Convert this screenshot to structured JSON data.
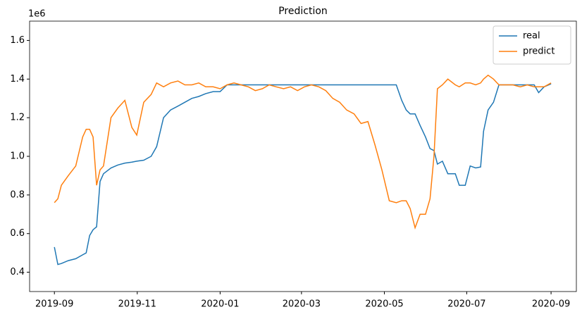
{
  "chart_data": {
    "type": "line",
    "title": "Prediction",
    "y_offset_label": "1e6",
    "x": [
      2019.666,
      2019.673,
      2019.68,
      2019.694,
      2019.709,
      2019.723,
      2019.73,
      2019.737,
      2019.744,
      2019.751,
      2019.758,
      2019.765,
      2019.78,
      2019.794,
      2019.808,
      2019.822,
      2019.832,
      2019.846,
      2019.861,
      2019.872,
      2019.886,
      2019.9,
      2019.915,
      2019.929,
      2019.943,
      2019.957,
      2019.971,
      2019.986,
      2020.0,
      2020.014,
      2020.028,
      2020.042,
      2020.057,
      2020.071,
      2020.085,
      2020.099,
      2020.113,
      2020.128,
      2020.142,
      2020.156,
      2020.17,
      2020.184,
      2020.199,
      2020.213,
      2020.227,
      2020.241,
      2020.255,
      2020.27,
      2020.284,
      2020.298,
      2020.312,
      2020.326,
      2020.341,
      2020.355,
      2020.366,
      2020.375,
      2020.383,
      2020.393,
      2020.403,
      2020.414,
      2020.423,
      2020.431,
      2020.438,
      2020.448,
      2020.459,
      2020.474,
      2020.482,
      2020.494,
      2020.504,
      2020.515,
      2020.525,
      2020.531,
      2020.54,
      2020.551,
      2020.562,
      2020.576,
      2020.59,
      2020.605,
      2020.619,
      2020.633,
      2020.642,
      2020.653,
      2020.667
    ],
    "series": [
      {
        "name": "real",
        "color": "#1f77b4",
        "values": [
          0.53,
          0.44,
          0.445,
          0.46,
          0.47,
          0.49,
          0.5,
          0.59,
          0.62,
          0.635,
          0.87,
          0.91,
          0.94,
          0.955,
          0.965,
          0.97,
          0.975,
          0.98,
          1.0,
          1.05,
          1.2,
          1.24,
          1.26,
          1.28,
          1.3,
          1.31,
          1.325,
          1.335,
          1.335,
          1.37,
          1.37,
          1.37,
          1.37,
          1.37,
          1.37,
          1.37,
          1.37,
          1.37,
          1.37,
          1.37,
          1.37,
          1.37,
          1.37,
          1.37,
          1.37,
          1.37,
          1.37,
          1.37,
          1.37,
          1.37,
          1.37,
          1.37,
          1.37,
          1.37,
          1.29,
          1.24,
          1.22,
          1.22,
          1.16,
          1.1,
          1.04,
          1.03,
          0.96,
          0.975,
          0.91,
          0.91,
          0.85,
          0.85,
          0.95,
          0.94,
          0.945,
          1.13,
          1.24,
          1.28,
          1.37,
          1.37,
          1.37,
          1.37,
          1.37,
          1.37,
          1.33,
          1.36,
          1.375
        ]
      },
      {
        "name": "predict",
        "color": "#ff7f0e",
        "values": [
          0.76,
          0.78,
          0.85,
          0.9,
          0.95,
          1.1,
          1.14,
          1.14,
          1.1,
          0.85,
          0.93,
          0.95,
          1.2,
          1.25,
          1.29,
          1.15,
          1.11,
          1.28,
          1.32,
          1.38,
          1.36,
          1.38,
          1.39,
          1.37,
          1.37,
          1.38,
          1.36,
          1.36,
          1.35,
          1.37,
          1.38,
          1.37,
          1.36,
          1.34,
          1.35,
          1.37,
          1.36,
          1.35,
          1.36,
          1.34,
          1.36,
          1.37,
          1.36,
          1.34,
          1.3,
          1.28,
          1.24,
          1.22,
          1.17,
          1.18,
          1.06,
          0.93,
          0.77,
          0.76,
          0.77,
          0.77,
          0.73,
          0.63,
          0.7,
          0.7,
          0.78,
          1.0,
          1.35,
          1.37,
          1.4,
          1.37,
          1.36,
          1.38,
          1.38,
          1.37,
          1.38,
          1.4,
          1.42,
          1.4,
          1.37,
          1.37,
          1.37,
          1.36,
          1.37,
          1.36,
          1.36,
          1.36,
          1.38
        ]
      }
    ],
    "xlim": [
      2019.616,
      2020.718
    ],
    "xticks": [
      {
        "value": 2019.666,
        "label": "2019-09"
      },
      {
        "value": 2019.833,
        "label": "2019-11"
      },
      {
        "value": 2020.0,
        "label": "2020-01"
      },
      {
        "value": 2020.164,
        "label": "2020-03"
      },
      {
        "value": 2020.331,
        "label": "2020-05"
      },
      {
        "value": 2020.497,
        "label": "2020-07"
      },
      {
        "value": 2020.667,
        "label": "2020-09"
      }
    ],
    "ylim": [
      0.3,
      1.7
    ],
    "yticks": [
      0.4,
      0.6,
      0.8,
      {
        "value": 1,
        "label": "1.0"
      },
      1.2,
      1.4,
      1.6
    ],
    "legend": "upper right"
  }
}
